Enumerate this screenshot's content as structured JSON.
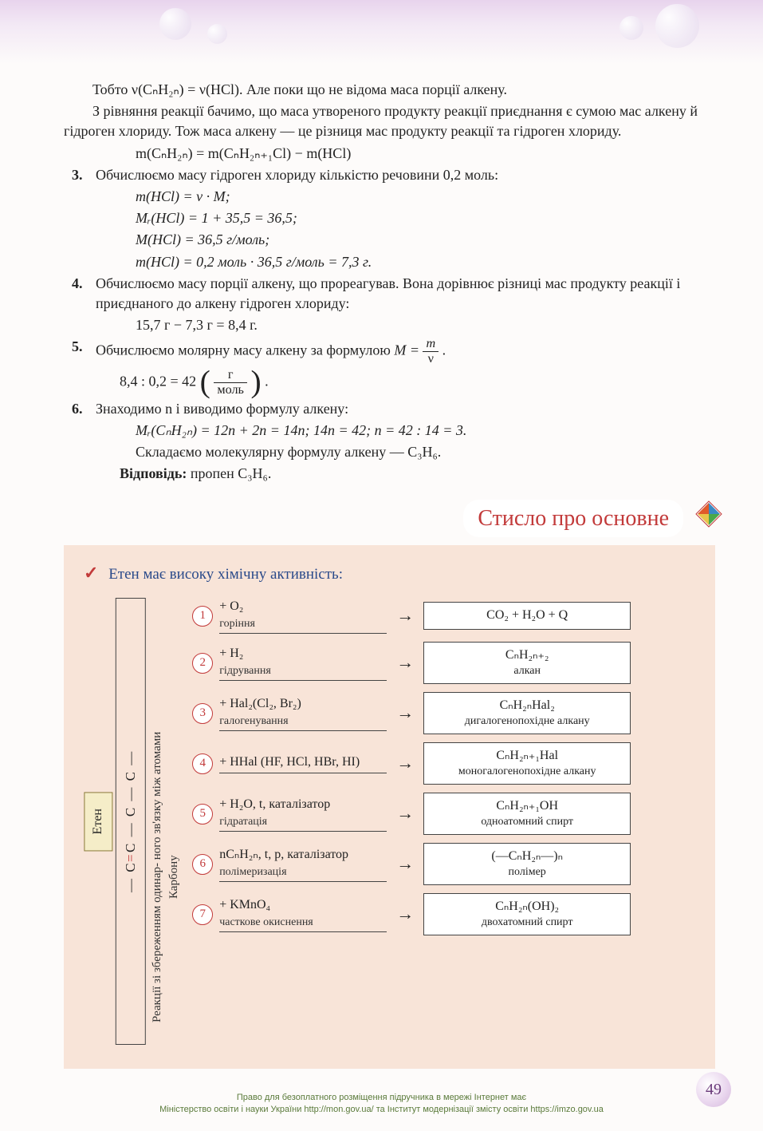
{
  "body": {
    "p1": "Тобто ν(CₙH₂ₙ) = ν(HCl). Але поки що не відома маса порції алкену.",
    "p2": "З рівняння реакції бачимо, що маса утвореного продукту реакції приєднання є сумою мас алкену й гідроген хлориду. Тож маса алкену — це різниця мас продукту реакції та гідроген хлориду.",
    "eq1": "m(CₙH₂ₙ) = m(CₙH₂ₙ₊₁Cl) − m(HCl)",
    "step3": {
      "num": "3.",
      "text": "Обчислюємо масу гідроген хлориду кількістю речовини 0,2 моль:",
      "l1": "m(HCl) = ν · M;",
      "l2": "Mᵣ(HCl) = 1 + 35,5 = 36,5;",
      "l3": "M(HCl) = 36,5 г/моль;",
      "l4": "m(HCl) = 0,2 моль · 36,5 г/моль = 7,3 г."
    },
    "step4": {
      "num": "4.",
      "text": "Обчислюємо масу порції алкену, що прореагував. Вона дорівнює різниці мас продукту реакції і приєднаного до алкену гідроген хлориду:",
      "l1": "15,7 г − 7,3 г = 8,4 г."
    },
    "step5": {
      "num": "5.",
      "text_a": "Обчислюємо молярну масу алкену за формулою ",
      "text_eq_lhs": "M = ",
      "frac_n": "m",
      "frac_d": "ν",
      "text_dot": " .",
      "calc_prefix": "8,4 : 0,2 = 42 ",
      "calc_unit_n": "г",
      "calc_unit_d": "моль",
      "calc_suffix": "."
    },
    "step6": {
      "num": "6.",
      "text": "Знаходимо n і виводимо формулу алкену:",
      "l1": "Mᵣ(CₙH₂ₙ) = 12n + 2n = 14n;    14n = 42;    n = 42 : 14 = 3.",
      "l2": "Складаємо молекулярну формулу алкену — C₃H₆."
    },
    "answer_label": "Відповідь:",
    "answer_text": " пропен C₃H₆."
  },
  "banner": {
    "text": "Стисло про основне"
  },
  "summary": {
    "title": "Етен має високу хімічну активність:",
    "eten_label": "Етен",
    "struct": "— C = C — C — C —",
    "note": "Реакції зі збереженням одинар-\nного зв'язку між атомами Карбону",
    "rows": [
      {
        "n": "1",
        "reagent": "+ O₂",
        "label": "горіння",
        "prod": "CO₂ + H₂O + Q",
        "prod_label": ""
      },
      {
        "n": "2",
        "reagent": "+ H₂",
        "label": "гідрування",
        "prod": "CₙH₂ₙ₊₂",
        "prod_label": "алкан"
      },
      {
        "n": "3",
        "reagent": "+ Hal₂(Cl₂, Br₂)",
        "label": "галогенування",
        "prod": "CₙH₂ₙHal₂",
        "prod_label": "дигалогенопохідне алкану"
      },
      {
        "n": "4",
        "reagent": "+ HHal (HF, HCl, HBr, HI)",
        "label": "",
        "prod": "CₙH₂ₙ₊₁Hal",
        "prod_label": "моногалогенопохідне алкану"
      },
      {
        "n": "5",
        "reagent": "+ H₂O, t, каталізатор",
        "label": "гідратація",
        "prod": "CₙH₂ₙ₊₁OH",
        "prod_label": "одноатомний спирт"
      },
      {
        "n": "6",
        "reagent": "nCₙH₂ₙ, t, p, каталізатор",
        "label": "полімеризація",
        "prod": "(—CₙH₂ₙ—)ₙ",
        "prod_label": "полімер"
      },
      {
        "n": "7",
        "reagent": "+ KMnO₄",
        "label": "часткове окиснення",
        "prod": "CₙH₂ₙ(OH)₂",
        "prod_label": "двохатомний спирт"
      }
    ]
  },
  "page_number": "49",
  "footer": {
    "l1": "Право для безоплатного розміщення підручника в мережі Інтернет має",
    "l2": "Міністерство освіти і науки України http://mon.gov.ua/ та Інститут модернізації змісту освіти https://imzo.gov.ua"
  },
  "colors": {
    "accent_red": "#c23a3a",
    "blue_title": "#2a4a8a",
    "summary_bg": "#f8e4d8",
    "eten_bg": "#f5edc8"
  }
}
